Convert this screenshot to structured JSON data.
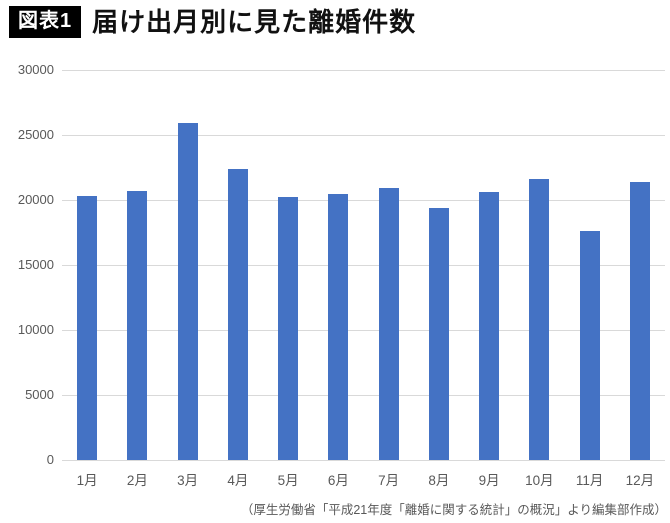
{
  "header": {
    "badge": "図表1"
  },
  "chart_data": {
    "type": "bar",
    "title": "届け出月別に見た離婚件数",
    "categories": [
      "1月",
      "2月",
      "3月",
      "4月",
      "5月",
      "6月",
      "7月",
      "8月",
      "9月",
      "10月",
      "11月",
      "12月"
    ],
    "values": [
      20300,
      20700,
      25900,
      22400,
      20200,
      20500,
      20900,
      19400,
      20600,
      21600,
      17600,
      21400
    ],
    "xlabel": "",
    "ylabel": "",
    "ylim": [
      0,
      30000
    ],
    "yticks": [
      0,
      5000,
      10000,
      15000,
      20000,
      25000,
      30000
    ],
    "grid": true,
    "legend": "none",
    "bar_color": "#4472C4",
    "gridline_color": "#d9d9d9",
    "axis_label_color": "#595959"
  },
  "footer": {
    "caption": "（厚生労働省「平成21年度「離婚に関する統計」の概況」より編集部作成）"
  }
}
